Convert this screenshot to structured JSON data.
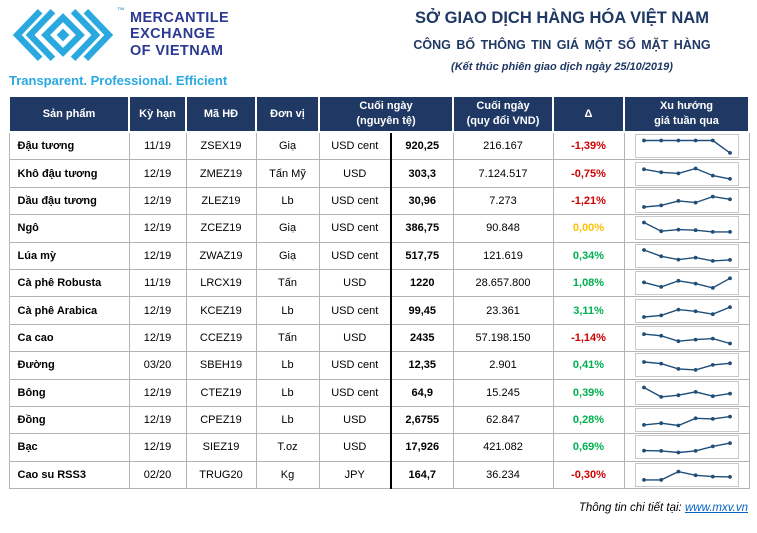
{
  "brand": {
    "name_lines": [
      "MERCANTILE",
      "EXCHANGE",
      "OF VIETNAM"
    ],
    "trademark": "™",
    "tagline": "Transparent. Professional. Efficient",
    "logo_blue": "#29A9E0",
    "name_navy": "#2B3990"
  },
  "header": {
    "title": "SỞ GIAO DỊCH HÀNG HÓA VIỆT NAM",
    "subtitle": "CÔNG BỐ THÔNG TIN GIÁ MỘT SỐ MẶT HÀNG",
    "session_note": "(Kết thúc phiên giao dịch ngày 25/10/2019)"
  },
  "table": {
    "columns": {
      "product": "Sản phẩm",
      "term": "Kỳ hạn",
      "code": "Mã HĐ",
      "unit": "Đơn vị",
      "close_native": "Cuối ngày\n(nguyên tệ)",
      "close_vnd": "Cuối ngày\n(quy đổi VND)",
      "delta": "Δ",
      "trend": "Xu hướng\ngiá tuần qua"
    },
    "rows": [
      {
        "product": "Đậu tương",
        "term": "11/19",
        "code": "ZSEX19",
        "unit": "Giạ",
        "currency": "USD cent",
        "price": "920,25",
        "vnd": "216.167",
        "delta": "-1,39%",
        "trend": "down",
        "spark": [
          0.85,
          0.85,
          0.85,
          0.85,
          0.85,
          0.1
        ]
      },
      {
        "product": "Khô đậu tương",
        "term": "12/19",
        "code": "ZMEZ19",
        "unit": "Tấn Mỹ",
        "currency": "USD",
        "price": "303,3",
        "vnd": "7.124.517",
        "delta": "-0,75%",
        "trend": "down",
        "spark": [
          0.8,
          0.62,
          0.55,
          0.85,
          0.42,
          0.22
        ]
      },
      {
        "product": "Dầu đậu tương",
        "term": "12/19",
        "code": "ZLEZ19",
        "unit": "Lb",
        "currency": "USD cent",
        "price": "30,96",
        "vnd": "7.273",
        "delta": "-1,21%",
        "trend": "down",
        "spark": [
          0.15,
          0.25,
          0.52,
          0.42,
          0.78,
          0.62
        ]
      },
      {
        "product": "Ngô",
        "term": "12/19",
        "code": "ZCEZ19",
        "unit": "Giạ",
        "currency": "USD cent",
        "price": "386,75",
        "vnd": "90.848",
        "delta": "0,00%",
        "trend": "flat",
        "spark": [
          0.85,
          0.32,
          0.42,
          0.38,
          0.28,
          0.28
        ]
      },
      {
        "product": "Lúa mỳ",
        "term": "12/19",
        "code": "ZWAZ19",
        "unit": "Giạ",
        "currency": "USD cent",
        "price": "517,75",
        "vnd": "121.619",
        "delta": "0,34%",
        "trend": "up",
        "spark": [
          0.88,
          0.5,
          0.3,
          0.42,
          0.22,
          0.28
        ]
      },
      {
        "product": "Cà phê Robusta",
        "term": "11/19",
        "code": "LRCX19",
        "unit": "Tấn",
        "currency": "USD",
        "price": "1220",
        "vnd": "28.657.800",
        "delta": "1,08%",
        "trend": "up",
        "spark": [
          0.55,
          0.28,
          0.65,
          0.48,
          0.22,
          0.8
        ]
      },
      {
        "product": "Cà phê Arabica",
        "term": "12/19",
        "code": "KCEZ19",
        "unit": "Lb",
        "currency": "USD cent",
        "price": "99,45",
        "vnd": "23.361",
        "delta": "3,11%",
        "trend": "up",
        "spark": [
          0.15,
          0.25,
          0.6,
          0.5,
          0.32,
          0.75
        ]
      },
      {
        "product": "Ca cao",
        "term": "12/19",
        "code": "CCEZ19",
        "unit": "Tấn",
        "currency": "USD",
        "price": "2435",
        "vnd": "57.198.150",
        "delta": "-1,14%",
        "trend": "down",
        "spark": [
          0.75,
          0.65,
          0.32,
          0.42,
          0.48,
          0.18
        ]
      },
      {
        "product": "Đường",
        "term": "03/20",
        "code": "SBEH19",
        "unit": "Lb",
        "currency": "USD cent",
        "price": "12,35",
        "vnd": "2.901",
        "delta": "0,41%",
        "trend": "up",
        "spark": [
          0.7,
          0.6,
          0.28,
          0.22,
          0.52,
          0.62
        ]
      },
      {
        "product": "Bông",
        "term": "12/19",
        "code": "CTEZ19",
        "unit": "Lb",
        "currency": "USD cent",
        "price": "64,9",
        "vnd": "15.245",
        "delta": "0,39%",
        "trend": "up",
        "spark": [
          0.85,
          0.28,
          0.38,
          0.58,
          0.32,
          0.48
        ]
      },
      {
        "product": "Đồng",
        "term": "12/19",
        "code": "CPEZ19",
        "unit": "Lb",
        "currency": "USD",
        "price": "2,6755",
        "vnd": "62.847",
        "delta": "0,28%",
        "trend": "up",
        "spark": [
          0.22,
          0.32,
          0.18,
          0.62,
          0.58,
          0.72
        ]
      },
      {
        "product": "Bạc",
        "term": "12/19",
        "code": "SIEZ19",
        "unit": "T.oz",
        "currency": "USD",
        "price": "17,926",
        "vnd": "421.082",
        "delta": "0,69%",
        "trend": "up",
        "spark": [
          0.3,
          0.28,
          0.18,
          0.28,
          0.55,
          0.75
        ]
      },
      {
        "product": "Cao su RSS3",
        "term": "02/20",
        "code": "TRUG20",
        "unit": "Kg",
        "currency": "JPY",
        "price": "164,7",
        "vnd": "36.234",
        "delta": "-0,30%",
        "trend": "down",
        "spark": [
          0.22,
          0.22,
          0.72,
          0.5,
          0.42,
          0.4
        ]
      }
    ]
  },
  "footer": {
    "label": "Thông tin chi tiết tại: ",
    "link": "www.mxv.vn"
  },
  "colors": {
    "header_navy": "#1F3864",
    "delta_down": "#D00000",
    "delta_flat": "#FFC000",
    "delta_up": "#00B050",
    "spark": "#1F4E79",
    "link": "#0563C1"
  }
}
